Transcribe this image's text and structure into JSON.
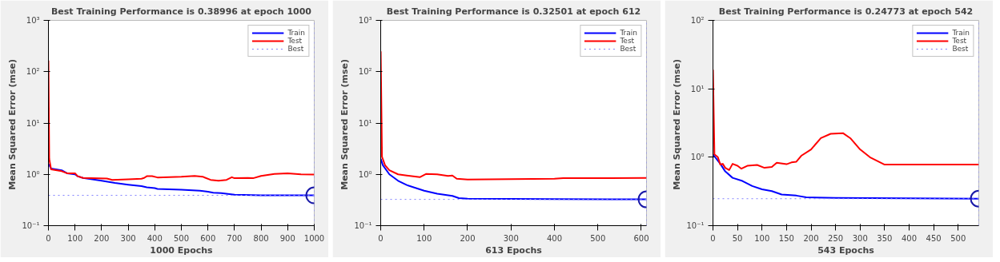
{
  "chart_data": [
    {
      "type": "line",
      "title": "Best Training Performance is 0.38996 at epoch 1000",
      "xlabel": "1000 Epochs",
      "ylabel": "Mean Squared Error  (mse)",
      "log": "y",
      "grid": false,
      "legend": "top right",
      "xlim": [
        0,
        1000
      ],
      "xticks": [
        0,
        100,
        200,
        300,
        400,
        500,
        600,
        700,
        800,
        900,
        1000
      ],
      "ylim": [
        0.1,
        1000
      ],
      "yticks": [
        {
          "value": 0.1,
          "label": "10⁻¹"
        },
        {
          "value": 1,
          "label": "10⁰"
        },
        {
          "value": 10,
          "label": "10¹"
        },
        {
          "value": 100,
          "label": "10²"
        },
        {
          "value": 1000,
          "label": "10³"
        }
      ],
      "series": [
        {
          "name": "Train",
          "color": "#0000ff",
          "x": [
            0,
            10,
            50,
            70,
            100,
            110,
            130,
            200,
            250,
            300,
            350,
            370,
            400,
            410,
            500,
            570,
            600,
            620,
            650,
            700,
            800,
            1000
          ],
          "values": [
            1.6,
            1.3,
            1.2,
            1.05,
            1.0,
            0.92,
            0.85,
            0.75,
            0.68,
            0.63,
            0.59,
            0.56,
            0.54,
            0.52,
            0.5,
            0.48,
            0.46,
            0.44,
            0.43,
            0.4,
            0.39,
            0.39
          ]
        },
        {
          "name": "Test",
          "color": "#ff0000",
          "x": [
            0,
            3,
            10,
            50,
            70,
            100,
            110,
            130,
            220,
            240,
            300,
            350,
            360,
            370,
            390,
            410,
            500,
            550,
            580,
            610,
            640,
            670,
            690,
            700,
            750,
            770,
            800,
            850,
            900,
            950,
            1000
          ],
          "values": [
            165,
            2,
            1.25,
            1.15,
            1.05,
            1.05,
            0.92,
            0.85,
            0.83,
            0.78,
            0.8,
            0.82,
            0.85,
            0.92,
            0.92,
            0.87,
            0.9,
            0.93,
            0.9,
            0.78,
            0.75,
            0.78,
            0.88,
            0.84,
            0.85,
            0.84,
            0.93,
            1.02,
            1.05,
            1.0,
            0.99
          ]
        },
        {
          "type": "scatter",
          "marker": "circle",
          "color": "#1a1aa8",
          "x": [
            1000
          ],
          "values": [
            0.38996
          ]
        }
      ],
      "ref_lines": [
        {
          "axis": "y",
          "value": 0.38996,
          "label": "Best",
          "color": "#8080ff",
          "line_style": "dotted"
        },
        {
          "axis": "x",
          "value": 1000,
          "color": "#8080ff",
          "line_style": "dotted"
        }
      ]
    },
    {
      "type": "line",
      "title": "Best Training Performance is 0.32501 at epoch 612",
      "xlabel": "613 Epochs",
      "ylabel": "Mean Squared Error  (mse)",
      "log": "y",
      "grid": false,
      "legend": "top right",
      "xlim": [
        0,
        612
      ],
      "xticks": [
        0,
        100,
        200,
        300,
        400,
        500,
        600
      ],
      "ylim": [
        0.1,
        1000
      ],
      "yticks": [
        {
          "value": 0.1,
          "label": "10⁻¹"
        },
        {
          "value": 1,
          "label": "10⁰"
        },
        {
          "value": 10,
          "label": "10¹"
        },
        {
          "value": 100,
          "label": "10²"
        },
        {
          "value": 1000,
          "label": "10³"
        }
      ],
      "series": [
        {
          "name": "Train",
          "color": "#0000ff",
          "x": [
            0,
            5,
            20,
            40,
            60,
            100,
            130,
            165,
            180,
            200,
            400,
            612
          ],
          "values": [
            2.0,
            1.5,
            1.0,
            0.75,
            0.62,
            0.48,
            0.42,
            0.38,
            0.345,
            0.335,
            0.33,
            0.325
          ]
        },
        {
          "name": "Test",
          "color": "#ff0000",
          "x": [
            0,
            3,
            10,
            20,
            40,
            60,
            90,
            105,
            130,
            155,
            165,
            175,
            200,
            300,
            400,
            420,
            612
          ],
          "values": [
            250,
            2.2,
            1.5,
            1.2,
            1.0,
            0.95,
            0.88,
            1.02,
            1.0,
            0.93,
            0.95,
            0.82,
            0.79,
            0.81,
            0.82,
            0.84,
            0.85
          ]
        },
        {
          "type": "scatter",
          "marker": "circle",
          "color": "#1a1aa8",
          "x": [
            612
          ],
          "values": [
            0.32501
          ]
        }
      ],
      "ref_lines": [
        {
          "axis": "y",
          "value": 0.32501,
          "label": "Best",
          "color": "#8080ff",
          "line_style": "dotted"
        },
        {
          "axis": "x",
          "value": 612,
          "color": "#8080ff",
          "line_style": "dotted"
        }
      ]
    },
    {
      "type": "line",
      "title": "Best Training Performance is 0.24773 at epoch 542",
      "xlabel": "543 Epochs",
      "ylabel": "Mean Squared Error  (mse)",
      "log": "y",
      "grid": false,
      "legend": "top right",
      "xlim": [
        0,
        542
      ],
      "xticks": [
        0,
        50,
        100,
        150,
        200,
        250,
        300,
        350,
        400,
        450,
        500
      ],
      "ylim": [
        0.1,
        100
      ],
      "yticks": [
        {
          "value": 0.1,
          "label": "10⁻¹"
        },
        {
          "value": 1,
          "label": "10⁰"
        },
        {
          "value": 10,
          "label": "10¹"
        },
        {
          "value": 100,
          "label": "10²"
        }
      ],
      "series": [
        {
          "name": "Train",
          "color": "#0000ff",
          "x": [
            0,
            15,
            25,
            40,
            60,
            80,
            100,
            120,
            140,
            170,
            190,
            250,
            542
          ],
          "values": [
            1.1,
            0.8,
            0.62,
            0.5,
            0.45,
            0.38,
            0.34,
            0.32,
            0.285,
            0.275,
            0.26,
            0.255,
            0.248
          ]
        },
        {
          "name": "Test",
          "color": "#ff0000",
          "x": [
            0,
            3,
            10,
            15,
            20,
            25,
            33,
            40,
            50,
            58,
            70,
            90,
            105,
            120,
            130,
            150,
            160,
            170,
            180,
            200,
            220,
            240,
            265,
            280,
            300,
            320,
            350,
            400,
            542
          ],
          "values": [
            19,
            1.1,
            1.0,
            0.78,
            0.8,
            0.7,
            0.65,
            0.8,
            0.75,
            0.68,
            0.75,
            0.77,
            0.7,
            0.72,
            0.83,
            0.79,
            0.84,
            0.86,
            1.05,
            1.3,
            1.9,
            2.2,
            2.25,
            1.9,
            1.3,
            1.0,
            0.78,
            0.78,
            0.78
          ]
        },
        {
          "type": "scatter",
          "marker": "circle",
          "color": "#1a1aa8",
          "x": [
            542
          ],
          "values": [
            0.24773
          ]
        }
      ],
      "ref_lines": [
        {
          "axis": "y",
          "value": 0.24773,
          "label": "Best",
          "color": "#8080ff",
          "line_style": "dotted"
        },
        {
          "axis": "x",
          "value": 542,
          "color": "#8080ff",
          "line_style": "dotted"
        }
      ]
    }
  ]
}
